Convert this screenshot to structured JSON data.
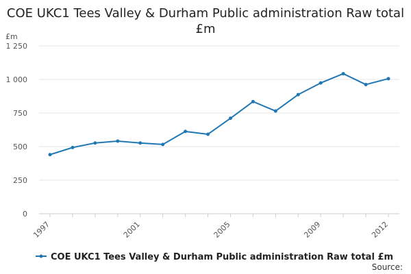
{
  "chart_data": {
    "type": "line",
    "title": "COE UKC1 Tees Valley & Durham Public administration Raw total £m",
    "unit_label": "£m",
    "x_ticks": [
      "1997",
      "2001",
      "2005",
      "2009",
      "2012"
    ],
    "y_ticks": [
      "0",
      "250",
      "500",
      "750",
      "1 000",
      "1 250"
    ],
    "y_tick_values": [
      0,
      250,
      500,
      750,
      1000,
      1250
    ],
    "ylim": [
      0,
      1250
    ],
    "xlim": [
      1997,
      2012
    ],
    "grid": true,
    "legend_position": "bottom-left",
    "series": [
      {
        "name": "COE UKC1 Tees Valley & Durham Public administration Raw total £m",
        "color": "#1f77b4",
        "x": [
          1997,
          1998,
          1999,
          2000,
          2001,
          2002,
          2003,
          2004,
          2005,
          2006,
          2007,
          2008,
          2009,
          2010,
          2011,
          2012
        ],
        "values": [
          440,
          493,
          527,
          541,
          527,
          516,
          613,
          592,
          711,
          835,
          765,
          887,
          974,
          1043,
          962,
          1006
        ]
      }
    ],
    "source": "Source:"
  }
}
